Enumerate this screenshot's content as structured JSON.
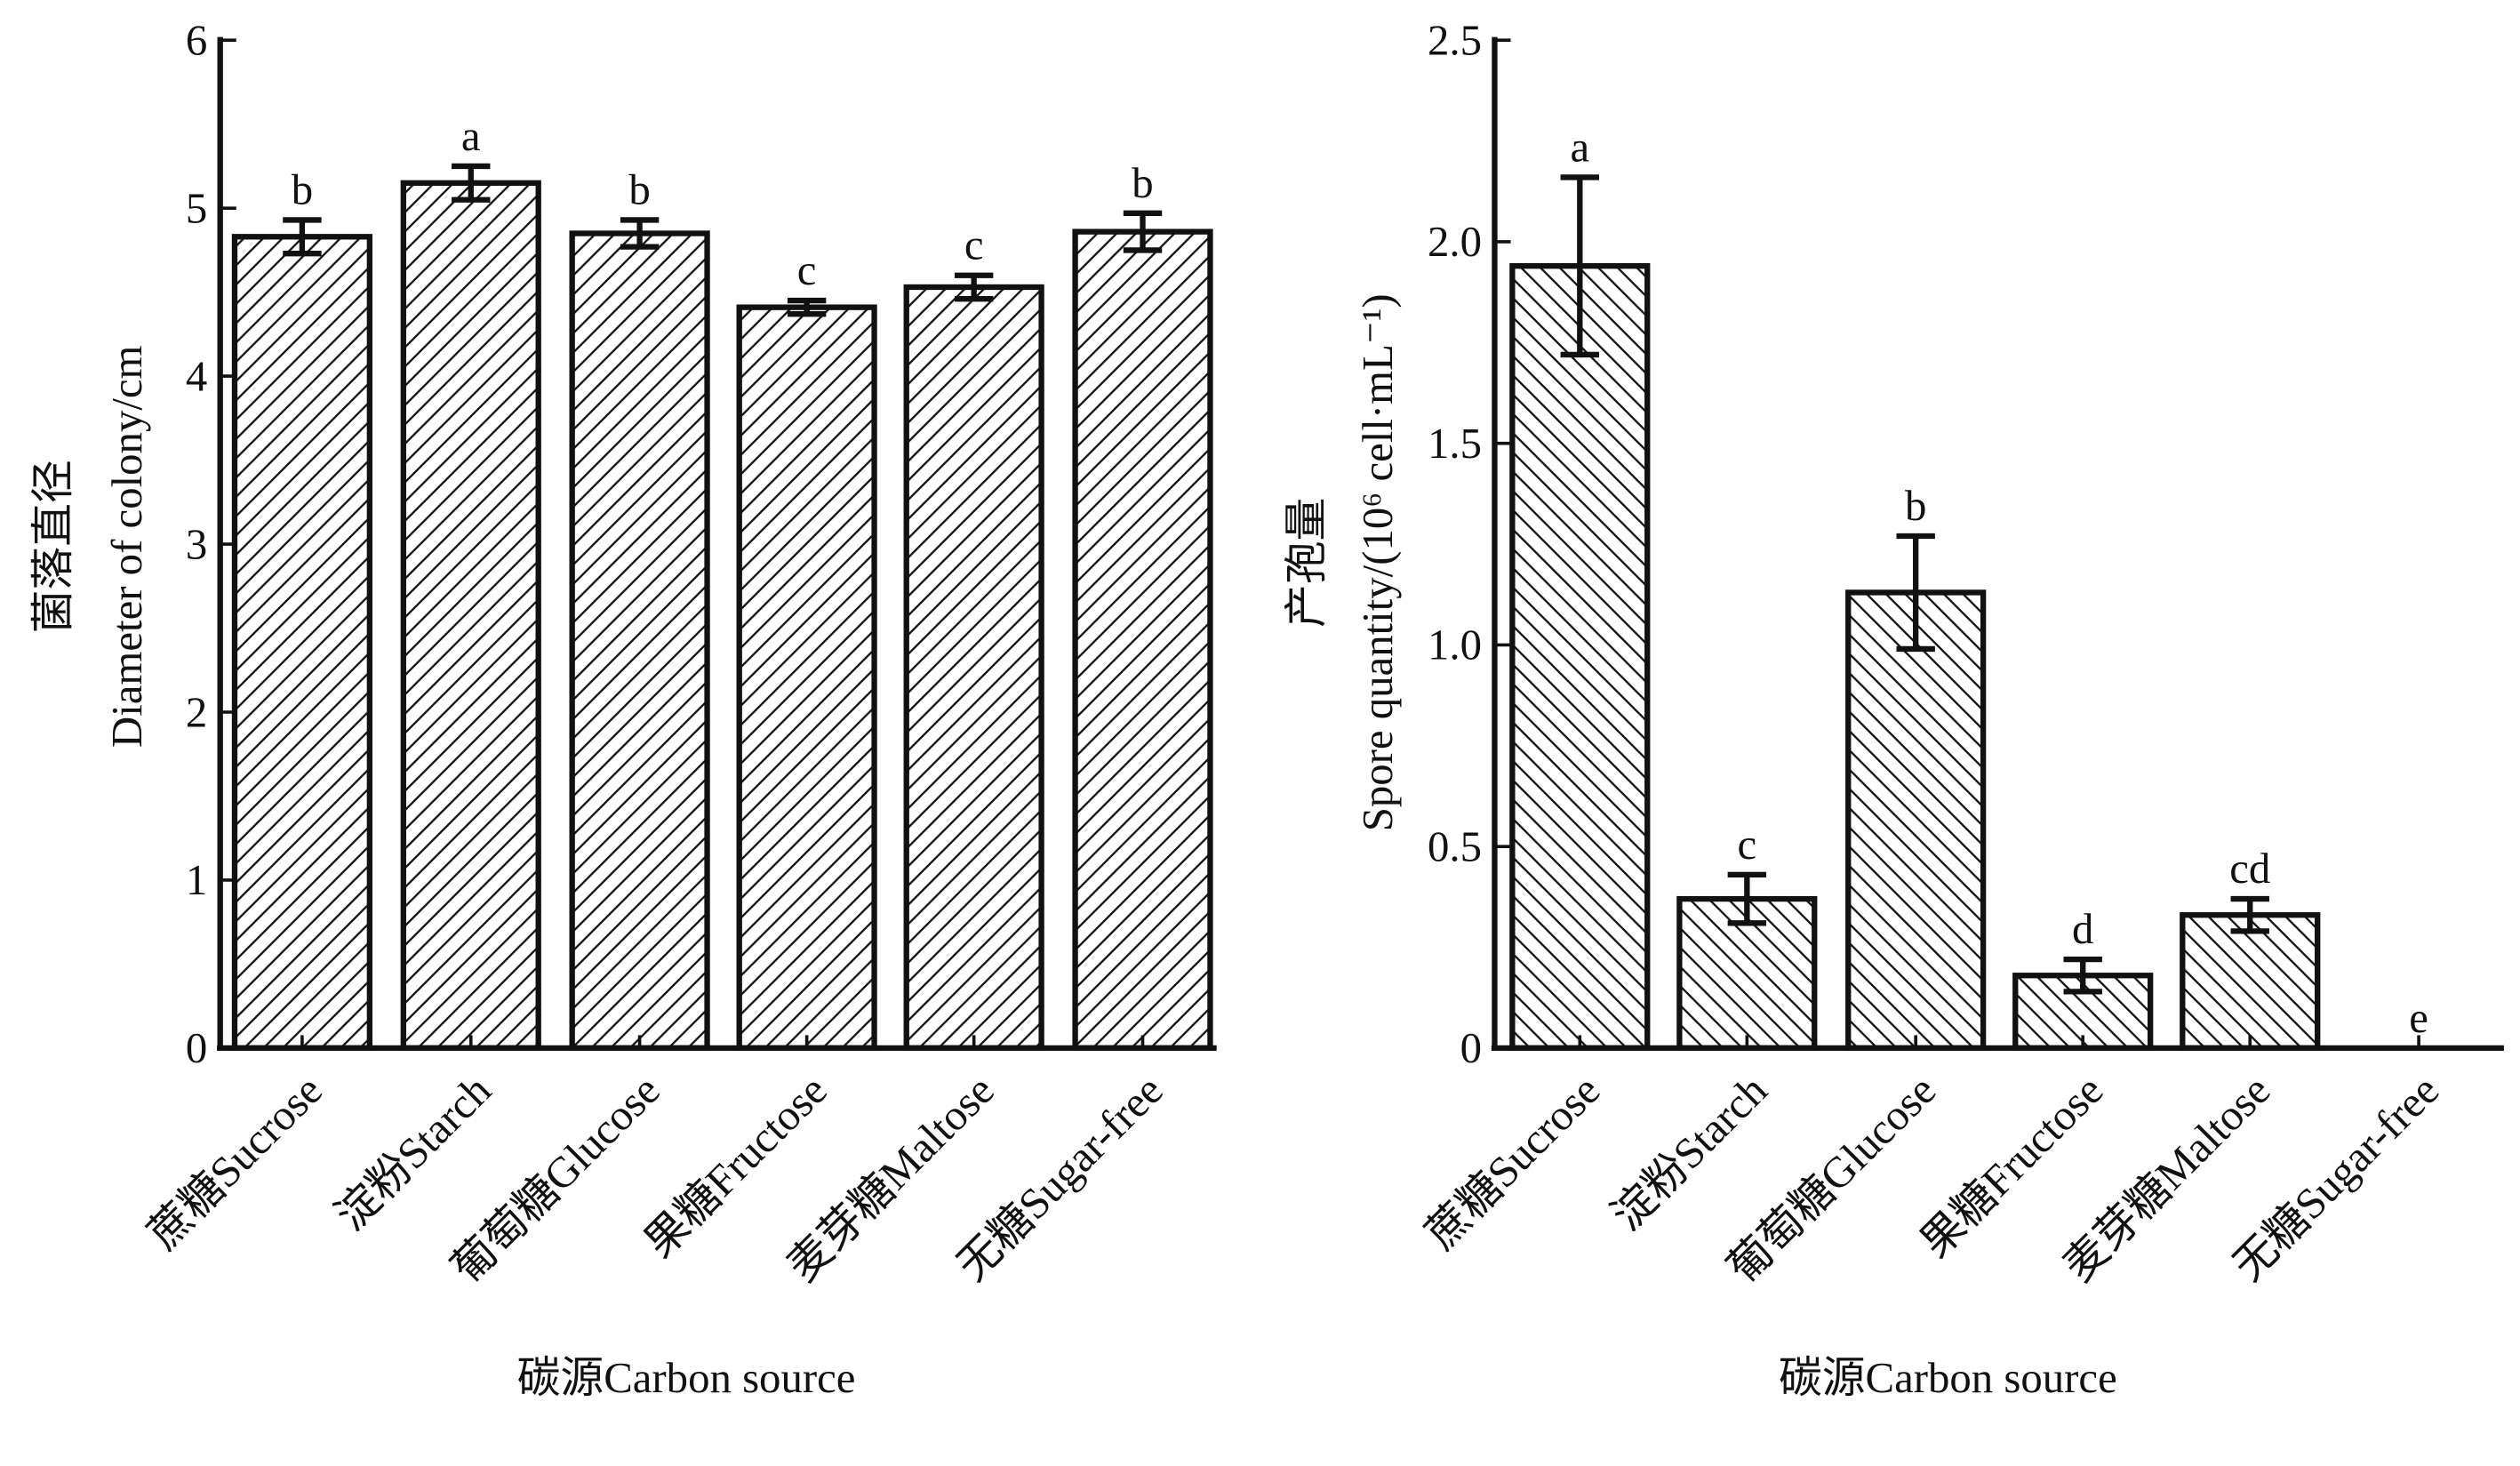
{
  "chart_data": [
    {
      "type": "bar",
      "title": "",
      "xlabel": "碳源Carbon source",
      "ylabel_cn": "菌落直径",
      "ylabel": "Diameter of colony/cm",
      "categories": [
        "蔗糖Sucrose",
        "淀粉Starch",
        "葡萄糖Glucose",
        "果糖Fructose",
        "麦芽糖Maltose",
        "无糖Sugar-free"
      ],
      "values": [
        4.83,
        5.15,
        4.85,
        4.41,
        4.53,
        4.86
      ],
      "errors": [
        0.1,
        0.1,
        0.08,
        0.04,
        0.07,
        0.11
      ],
      "significance": [
        "b",
        "a",
        "b",
        "c",
        "c",
        "b"
      ],
      "ylim": [
        0,
        6
      ],
      "yticks": [
        "0",
        "1",
        "2",
        "3",
        "4",
        "5",
        "6"
      ],
      "hatch": "forward-slash",
      "grid": false
    },
    {
      "type": "bar",
      "title": "",
      "xlabel": "碳源Carbon source",
      "ylabel_cn": "产孢量",
      "ylabel": "Spore quantity/(10⁶ cell·mL⁻¹)",
      "categories": [
        "蔗糖Sucrose",
        "淀粉Starch",
        "葡萄糖Glucose",
        "果糖Fructose",
        "麦芽糖Maltose",
        "无糖Sugar-free"
      ],
      "values": [
        1.94,
        0.37,
        1.13,
        0.18,
        0.33,
        0
      ],
      "errors": [
        0.22,
        0.06,
        0.14,
        0.04,
        0.04,
        0
      ],
      "significance": [
        "a",
        "c",
        "b",
        "d",
        "cd",
        "e"
      ],
      "ylim": [
        0,
        2.5
      ],
      "yticks": [
        "0",
        "0.5",
        "1.0",
        "1.5",
        "2.0",
        "2.5"
      ],
      "hatch": "back-slash",
      "grid": false
    }
  ]
}
